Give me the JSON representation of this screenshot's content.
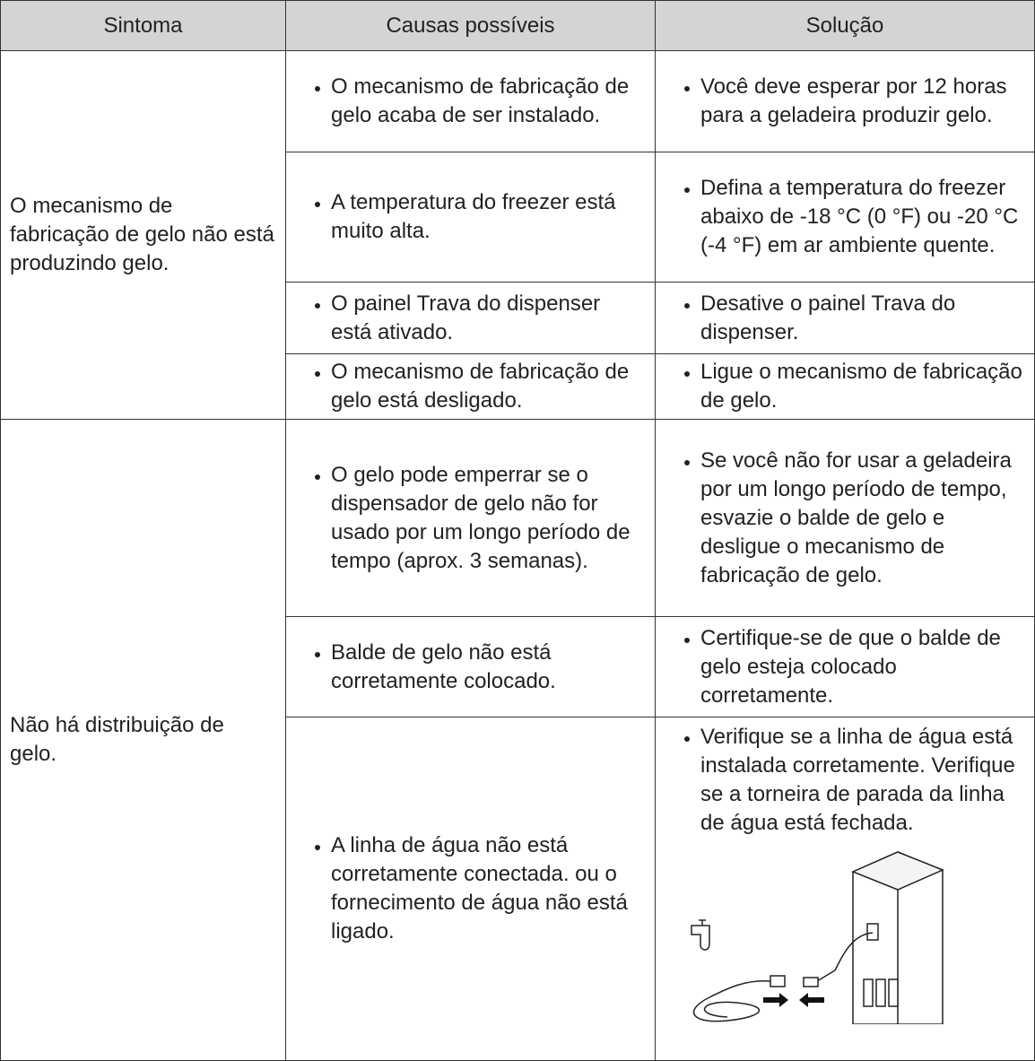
{
  "header": [
    "Sintoma",
    "Causas possíveis",
    "Solução"
  ],
  "groups": [
    {
      "symptom": "O mecanismo de fabricação de gelo não está produzindo gelo.",
      "rows": [
        {
          "cause": "O mecanismo de fabricação de gelo acaba de ser instalado.",
          "solution": "Você deve esperar por 12 horas para a geladeira produzir gelo."
        },
        {
          "cause": "A temperatura do freezer está muito alta.",
          "solution": "Defina a temperatura do freezer abaixo de -18 °C (0 °F) ou -20 °C (-4 °F) em ar ambiente quente."
        },
        {
          "cause": "O painel Trava do dispenser está ativado.",
          "solution": "Desative o painel Trava do dispenser."
        },
        {
          "cause": "O mecanismo de fabricação de gelo está desligado.",
          "solution": "Ligue o mecanismo de fabricação de gelo."
        }
      ]
    },
    {
      "symptom": "Não há distribuição de gelo.",
      "rows": [
        {
          "cause": "O gelo pode emperrar se o dispensador de gelo não for usado por um longo período de tempo (aprox. 3 semanas).",
          "solution": "Se você não for usar a geladeira por um longo período de tempo, esvazie o balde de gelo e desligue o mecanismo de fabricação de gelo."
        },
        {
          "cause": "Balde de gelo não está corretamente colocado.",
          "solution": "Certifique-se de que o balde de gelo esteja colocado corretamente."
        },
        {
          "cause": "A linha de água não está corretamente conectada. ou o fornecimento de água não está ligado.",
          "solution": "Verifique se a linha de água está instalada corretamente. Verifique se a torneira de parada da linha de água está fechada."
        }
      ]
    }
  ]
}
